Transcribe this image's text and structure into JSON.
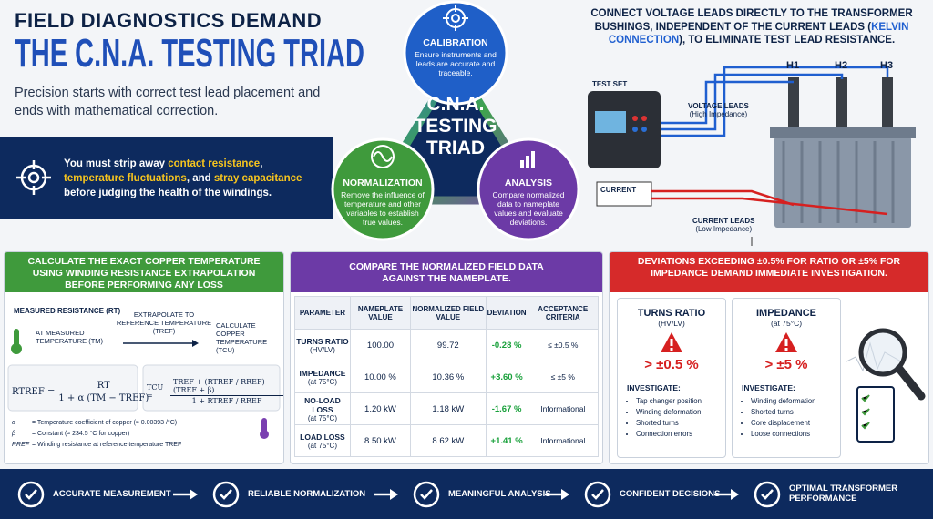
{
  "header": {
    "title_line1": "FIELD DIAGNOSTICS DEMAND",
    "title_line2": "THE C.N.A. TESTING TRIAD",
    "subtitle": "Precision starts with correct test lead placement and ends with mathematical correction."
  },
  "callout": {
    "parts": [
      "You must strip away ",
      "contact resistance",
      ", ",
      "temperature fluctuations",
      ", and ",
      "stray capacitance",
      " before judging the health of the windings."
    ]
  },
  "triad": {
    "center": [
      "C.N.A.",
      "TESTING",
      "TRIAD"
    ],
    "nodes": [
      {
        "title": "CALIBRATION",
        "text": "Ensure instruments and leads are accurate and traceable."
      },
      {
        "title": "NORMALIZATION",
        "text": "Remove the influence of temperature and other variables to establish true values."
      },
      {
        "title": "ANALYSIS",
        "text": "Compare normalized data to nameplate values and evaluate deviations."
      }
    ]
  },
  "kelvin": {
    "parts": [
      "CONNECT VOLTAGE LEADS DIRECTLY TO THE TRANSFORMER BUSHINGS, INDEPENDENT OF THE CURRENT LEADS (",
      "KELVIN CONNECTION",
      "), TO ELIMINATE TEST LEAD RESISTANCE."
    ],
    "test_set": "TEST SET",
    "voltage_leads": "VOLTAGE LEADS",
    "voltage_sub": "(High Impedance)",
    "current": "CURRENT",
    "current_leads": "CURRENT LEADS",
    "current_sub": "(Low Impedance)",
    "bushings": [
      "H1",
      "H2",
      "H3"
    ]
  },
  "temperature_panel": {
    "header": "CALCULATE THE EXACT COPPER TEMPERATURE USING WINDING RESISTANCE EXTRAPOLATION BEFORE PERFORMING ANY LOSS MEASUREMENTS.",
    "measured": "MEASURED RESISTANCE (RT)",
    "at_measured": "AT MEASURED TEMPERATURE (TM)",
    "extrapolate": "EXTRAPOLATE TO REFERENCE TEMPERATURE (TREF)",
    "calculate": "CALCULATE COPPER TEMPERATURE (TCU)",
    "formula1": {
      "lhs": "RTREF =",
      "num": "RT",
      "den": "1 + α (TM − TREF)"
    },
    "formula2": {
      "lhs": "TCU =",
      "num": "TREF + (RTREF / RREF) (TREF + β)",
      "den": "1 + RTREF / RREF"
    },
    "legend": [
      {
        "symbol": "α",
        "text": "= Temperature coefficient of copper (≈ 0.00393 /°C)"
      },
      {
        "symbol": "β",
        "text": "= Constant (≈ 234.5 °C for copper)"
      },
      {
        "symbol": "RREF",
        "text": "= Winding resistance at reference temperature TREF"
      }
    ]
  },
  "comparison_panel": {
    "header": "COMPARE THE NORMALIZED FIELD DATA AGAINST THE NAMEPLATE.",
    "columns": [
      "PARAMETER",
      "NAMEPLATE VALUE",
      "NORMALIZED FIELD VALUE",
      "DEVIATION",
      "ACCEPTANCE CRITERIA"
    ],
    "rows": [
      {
        "parameter": "TURNS RATIO",
        "condition": "(HV/LV)",
        "nameplate": "100.00",
        "field": "99.72",
        "deviation": "-0.28 %",
        "criteria": "≤ ±0.5 %"
      },
      {
        "parameter": "IMPEDANCE",
        "condition": "(at 75°C)",
        "nameplate": "10.00 %",
        "field": "10.36 %",
        "deviation": "+3.60 %",
        "criteria": "≤ ±5 %"
      },
      {
        "parameter": "NO-LOAD LOSS",
        "condition": "(at 75°C)",
        "nameplate": "1.20 kW",
        "field": "1.18 kW",
        "deviation": "-1.67 %",
        "criteria": "Informational"
      },
      {
        "parameter": "LOAD LOSS",
        "condition": "(at 75°C)",
        "nameplate": "8.50 kW",
        "field": "8.62 kW",
        "deviation": "+1.41 %",
        "criteria": "Informational"
      }
    ]
  },
  "deviation_panel": {
    "header": "DEVIATIONS EXCEEDING ±0.5% FOR RATIO OR ±5% FOR IMPEDANCE DEMAND IMMEDIATE INVESTIGATION.",
    "cards": [
      {
        "title": "TURNS RATIO",
        "sub": "(HV/LV)",
        "limit": "> ±0.5 %",
        "investigate": "INVESTIGATE:",
        "items": [
          "Tap changer position",
          "Winding deformation",
          "Shorted turns",
          "Connection errors"
        ]
      },
      {
        "title": "IMPEDANCE",
        "sub": "(at 75°C)",
        "limit": "> ±5 %",
        "investigate": "INVESTIGATE:",
        "items": [
          "Winding deformation",
          "Shorted turns",
          "Core displacement",
          "Loose connections"
        ]
      }
    ]
  },
  "footer": {
    "steps": [
      "ACCURATE MEASUREMENT",
      "RELIABLE NORMALIZATION",
      "MEANINGFUL ANALYSIS",
      "CONFIDENT DECISIONS",
      "OPTIMAL TRANSFORMER PERFORMANCE"
    ]
  }
}
